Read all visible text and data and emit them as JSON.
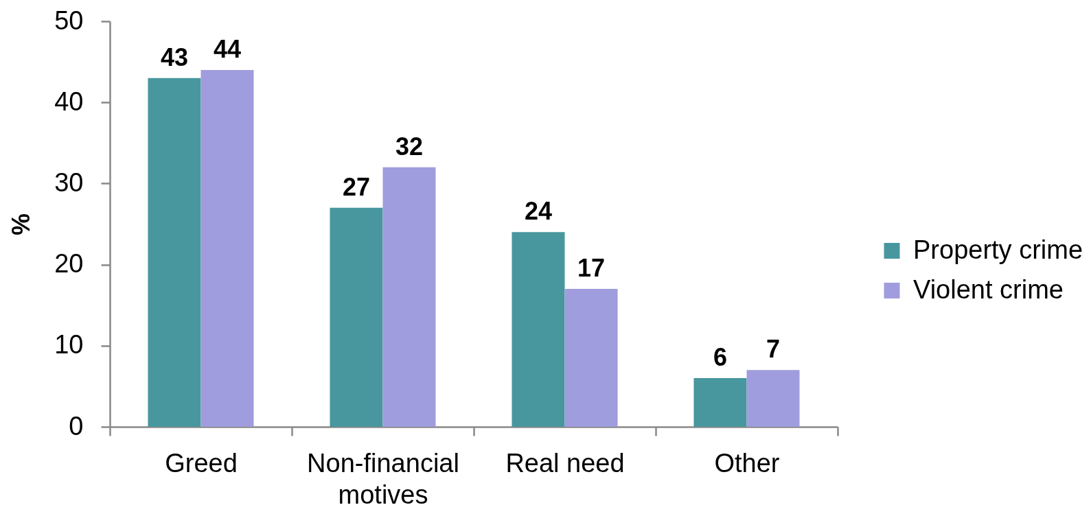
{
  "chart_data": {
    "type": "bar",
    "ylabel": "%",
    "categories": [
      "Greed",
      "Non-financial motives",
      "Real need",
      "Other"
    ],
    "series": [
      {
        "name": "Property crime",
        "color": "#48979e",
        "values": [
          43,
          27,
          24,
          6
        ]
      },
      {
        "name": "Violent crime",
        "color": "#9f9ddd",
        "values": [
          44,
          32,
          17,
          7
        ]
      }
    ],
    "ylim": [
      0,
      50
    ],
    "yticks": [
      0,
      10,
      20,
      30,
      40,
      50
    ],
    "data_labels": true,
    "legend": "right"
  }
}
